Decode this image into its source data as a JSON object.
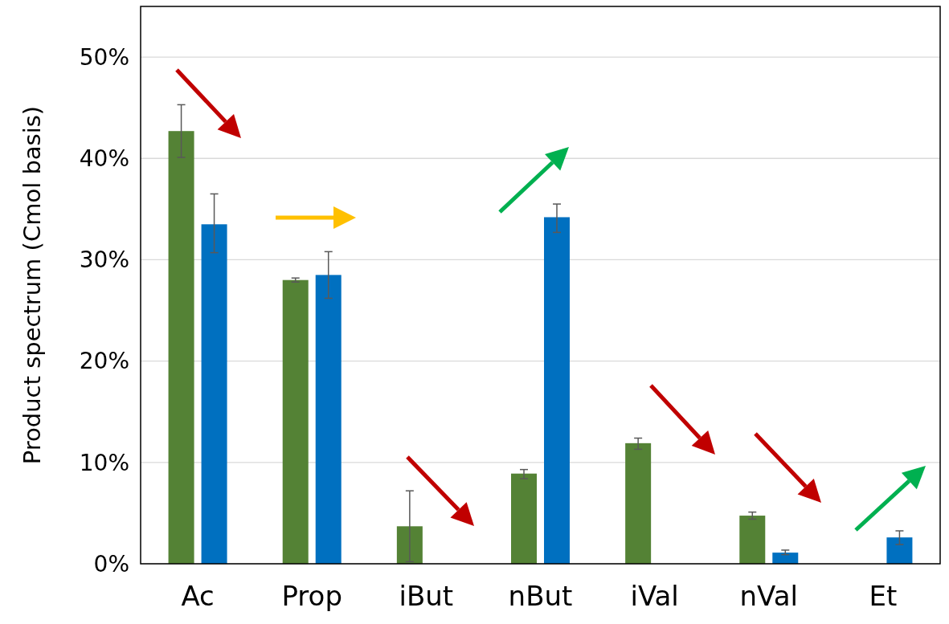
{
  "chart_data": {
    "type": "bar",
    "ylabel": "Product spectrum (Cmol basis)",
    "categories": [
      "Ac",
      "Prop",
      "iBut",
      "nBut",
      "iVal",
      "nVal",
      "Et"
    ],
    "series": [
      {
        "color": "#548235",
        "values": [
          42.7,
          28.0,
          3.7,
          8.9,
          11.9,
          4.75,
          0
        ],
        "errors": [
          [
            40.1,
            45.3
          ],
          [
            27.8,
            28.2
          ],
          [
            0.2,
            7.2
          ],
          [
            8.4,
            9.3
          ],
          [
            11.3,
            12.4
          ],
          [
            4.4,
            5.1
          ],
          null
        ]
      },
      {
        "color": "#0070c0",
        "values": [
          33.5,
          28.5,
          0,
          34.2,
          0,
          1.1,
          2.6
        ],
        "errors": [
          [
            30.7,
            36.5
          ],
          [
            26.2,
            30.8
          ],
          null,
          [
            32.7,
            35.5
          ],
          null,
          [
            0.9,
            1.35
          ],
          [
            1.9,
            3.25
          ]
        ]
      }
    ],
    "ylim": [
      0,
      55
    ],
    "yticks": [
      {
        "value": 0,
        "label": "0%"
      },
      {
        "value": 10,
        "label": "10%"
      },
      {
        "value": 20,
        "label": "20%"
      },
      {
        "value": 30,
        "label": "30%"
      },
      {
        "value": 40,
        "label": "40%"
      },
      {
        "value": 50,
        "label": "50%"
      }
    ],
    "grid": "y"
  }
}
